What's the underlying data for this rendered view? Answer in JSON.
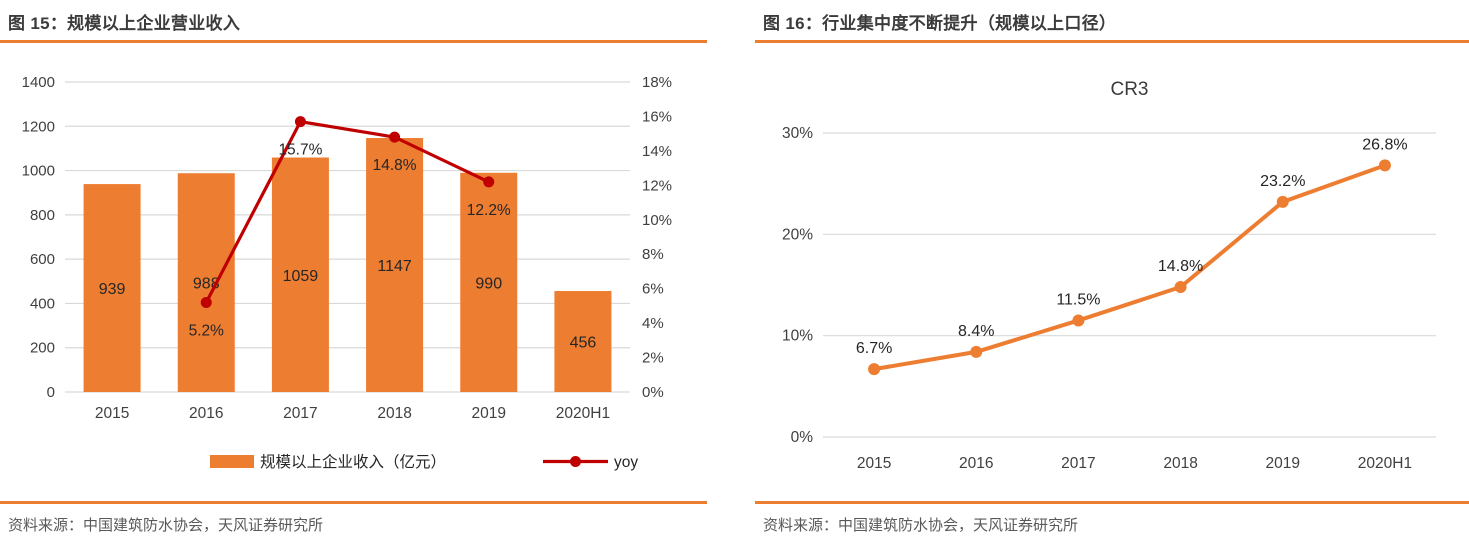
{
  "colors": {
    "brand_orange": "#ED7D31",
    "line_red": "#C00000",
    "gridline": "#D9D9D9",
    "tick_text": "#404040",
    "data_label_text": "#262626",
    "title_text": "#3b3b3b",
    "source_text": "#595959"
  },
  "left_panel": {
    "title": "图 15：规模以上企业营业收入",
    "source": "资料来源：中国建筑防水协会，天风证券研究所"
  },
  "right_panel": {
    "title": "图 16：行业集中度不断提升（规模以上口径）",
    "source": "资料来源：中国建筑防水协会，天风证券研究所"
  },
  "chart_data": [
    {
      "type": "bar+line",
      "title": "",
      "categories": [
        "2015",
        "2016",
        "2017",
        "2018",
        "2019",
        "2020H1"
      ],
      "series": [
        {
          "name": "规模以上企业收入（亿元）",
          "type": "bar",
          "axis": "left",
          "color": "#ED7D31",
          "values": [
            939,
            988,
            1059,
            1147,
            990,
            456
          ],
          "labels": [
            "939",
            "988",
            "1059",
            "1147",
            "990",
            "456"
          ]
        },
        {
          "name": "yoy",
          "type": "line",
          "axis": "right",
          "color": "#C00000",
          "values": [
            null,
            5.2,
            15.7,
            14.8,
            12.2,
            null
          ],
          "labels": [
            null,
            "5.2%",
            "15.7%",
            "14.8%",
            "12.2%",
            null
          ]
        }
      ],
      "left_axis": {
        "min": 0,
        "max": 1400,
        "step": 200,
        "ticks": [
          "0",
          "200",
          "400",
          "600",
          "800",
          "1000",
          "1200",
          "1400"
        ]
      },
      "right_axis": {
        "min": 0,
        "max": 18,
        "step": 2,
        "ticks": [
          "0%",
          "2%",
          "4%",
          "6%",
          "8%",
          "10%",
          "12%",
          "14%",
          "16%",
          "18%"
        ]
      },
      "grid": true,
      "legend_position": "bottom",
      "legend": [
        {
          "label": "规模以上企业收入（亿元）",
          "marker": "bar",
          "color": "#ED7D31"
        },
        {
          "label": "yoy",
          "marker": "line-dot",
          "color": "#C00000"
        }
      ]
    },
    {
      "type": "line",
      "title": "CR3",
      "categories": [
        "2015",
        "2016",
        "2017",
        "2018",
        "2019",
        "2020H1"
      ],
      "series": [
        {
          "name": "CR3",
          "color": "#ED7D31",
          "values": [
            6.7,
            8.4,
            11.5,
            14.8,
            23.2,
            26.8
          ],
          "labels": [
            "6.7%",
            "8.4%",
            "11.5%",
            "14.8%",
            "23.2%",
            "26.8%"
          ]
        }
      ],
      "y_axis": {
        "min": 0,
        "max": 30,
        "step": 10,
        "ticks": [
          "0%",
          "10%",
          "20%",
          "30%"
        ]
      },
      "grid": true,
      "legend_position": "none"
    }
  ]
}
